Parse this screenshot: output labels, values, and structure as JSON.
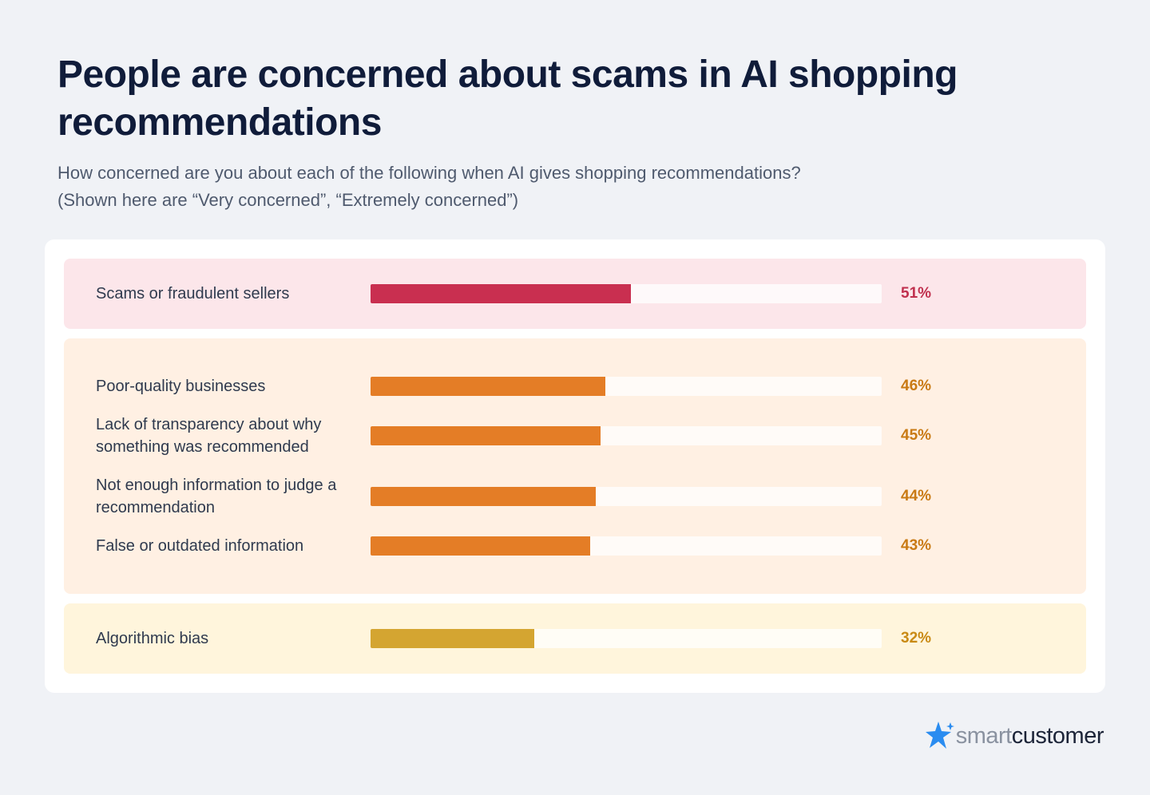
{
  "chart_data": {
    "type": "bar",
    "orientation": "horizontal",
    "title": "People are concerned about scams in AI shopping recommendations",
    "subtitle": [
      "How concerned are you about each of the following when AI gives shopping recommendations?",
      "(Shown here are “Very concerned”, “Extremely concerned”)"
    ],
    "xlim": [
      0,
      100
    ],
    "groups": [
      {
        "color": "#c92f50",
        "background": "#fce6ea",
        "label_color": "#c0304e",
        "categories": [
          "Scams or fraudulent sellers"
        ],
        "values": [
          51
        ],
        "value_labels": [
          "51%"
        ]
      },
      {
        "color": "#e47d26",
        "background": "#fff0e3",
        "label_color": "#c97a14",
        "categories": [
          "Poor-quality businesses",
          "Lack of transparency about why something was recommended",
          "Not enough information to judge a recommendation",
          "False or outdated information"
        ],
        "values": [
          46,
          45,
          44,
          43
        ],
        "value_labels": [
          "46%",
          "45%",
          "44%",
          "43%"
        ]
      },
      {
        "color": "#d4a531",
        "background": "#fff5dc",
        "label_color": "#c98a14",
        "categories": [
          "Algorithmic bias"
        ],
        "values": [
          32
        ],
        "value_labels": [
          "32%"
        ]
      }
    ]
  },
  "logo": {
    "parts": [
      "smart",
      "customer"
    ]
  }
}
